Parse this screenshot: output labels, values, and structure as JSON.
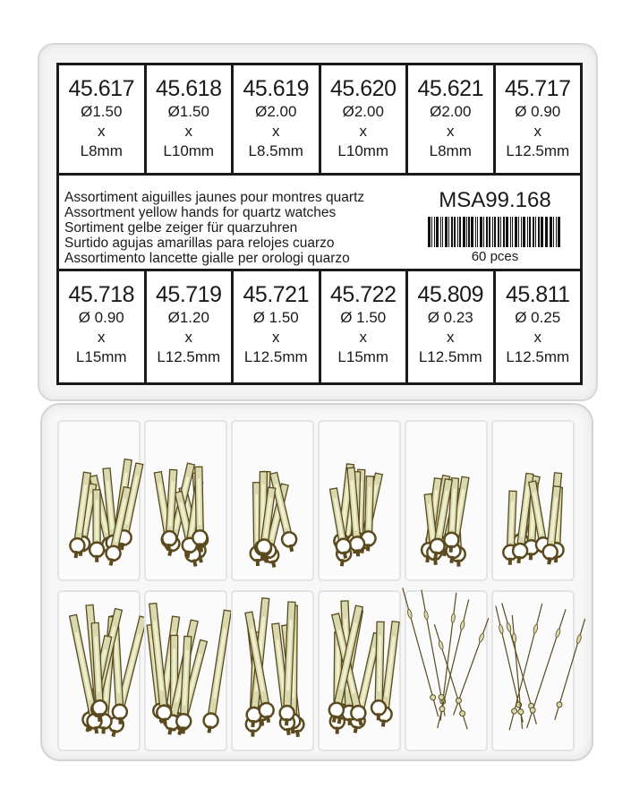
{
  "label": {
    "top_row": [
      {
        "code": "45.617",
        "diameter": "Ø1.50",
        "x": "x",
        "length": "L8mm"
      },
      {
        "code": "45.618",
        "diameter": "Ø1.50",
        "x": "x",
        "length": "L10mm"
      },
      {
        "code": "45.619",
        "diameter": "Ø2.00",
        "x": "x",
        "length": "L8.5mm"
      },
      {
        "code": "45.620",
        "diameter": "Ø2.00",
        "x": "x",
        "length": "L10mm"
      },
      {
        "code": "45.621",
        "diameter": "Ø2.00",
        "x": "x",
        "length": "L8mm"
      },
      {
        "code": "45.717",
        "diameter": "Ø 0.90",
        "x": "x",
        "length": "L12.5mm"
      }
    ],
    "description": [
      "Assortiment aiguilles jaunes pour montres quartz",
      "Assortment yellow hands for quartz watches",
      "Sortiment gelbe zeiger für quarzuhren",
      "Surtido agujas amarillas para relojes cuarzo",
      "Assortimento lancette gialle per orologi quarzo"
    ],
    "sku": "MSA99.168",
    "quantity": "60 pces",
    "bottom_row": [
      {
        "code": "45.718",
        "diameter": "Ø 0.90",
        "x": "x",
        "length": "L15mm"
      },
      {
        "code": "45.719",
        "diameter": "Ø1.20",
        "x": "x",
        "length": "L12.5mm"
      },
      {
        "code": "45.721",
        "diameter": "Ø 1.50",
        "x": "x",
        "length": "L12.5mm"
      },
      {
        "code": "45.722",
        "diameter": "Ø 1.50",
        "x": "x",
        "length": "L15mm"
      },
      {
        "code": "45.809",
        "diameter": "Ø 0.23",
        "x": "x",
        "length": "L12.5mm"
      },
      {
        "code": "45.811",
        "diameter": "Ø 0.25",
        "x": "x",
        "length": "L12.5mm"
      }
    ]
  },
  "colors": {
    "hand_fill": "#d8d9ae",
    "hand_edge": "#5a4a1e",
    "label_border": "#1a1a1a"
  }
}
